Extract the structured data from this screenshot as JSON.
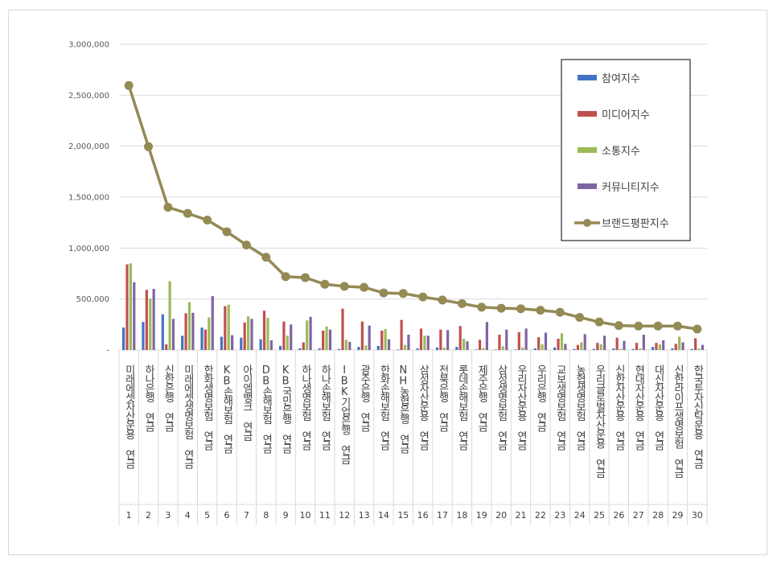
{
  "chart_data": {
    "type": "bar",
    "title": "",
    "xlabel": "",
    "ylabel": "",
    "ylim": [
      0,
      3000000
    ],
    "yticks": [
      0,
      500000,
      1000000,
      1500000,
      2000000,
      2500000,
      3000000
    ],
    "ytick_labels": [
      "-",
      "500,000",
      "1,000,000",
      "1,500,000",
      "2,000,000",
      "2,500,000",
      "3,000,000"
    ],
    "grid": true,
    "legend_position": "top-right",
    "categories": [
      "미래에셋자산운용 연금",
      "하나은행 연금",
      "신한은행 연금",
      "미래에셋생명보험 연금",
      "한화생명보험 연금",
      "KB손해보험 연금",
      "아이엠뱅크 연금",
      "DB손해보험 연금",
      "KB국민은행 연금",
      "하나생명보험 연금",
      "하나손해보험 연금",
      "IBK기업은행 연금",
      "광주은행 연금",
      "한화손해보험 연금",
      "NH농협은행 연금",
      "삼성자산운용 연금",
      "전북은행 연금",
      "롯데손해보험 연금",
      "제주은행 연금",
      "삼성생명보험 연금",
      "우리자산운용 연금",
      "우리은행 연금",
      "교보생명보험 연금",
      "농협생명보험 연금",
      "우리글로벌자산운용 연금",
      "신한자산운용 연금",
      "현대자산운용 연금",
      "대신자산운용 연금",
      "신한라이프생명보험 연금",
      "한국투자신탁운용 연금"
    ],
    "category_numbers": [
      "1",
      "2",
      "3",
      "4",
      "5",
      "6",
      "7",
      "8",
      "9",
      "10",
      "11",
      "12",
      "13",
      "14",
      "15",
      "16",
      "17",
      "18",
      "19",
      "20",
      "21",
      "22",
      "23",
      "24",
      "25",
      "26",
      "27",
      "28",
      "29",
      "30"
    ],
    "series": [
      {
        "name": "참여지수",
        "type": "bar",
        "color": "#4472c4",
        "values": [
          220000,
          275000,
          350000,
          140000,
          220000,
          130000,
          120000,
          105000,
          40000,
          15000,
          15000,
          10000,
          30000,
          40000,
          5000,
          15000,
          25000,
          30000,
          5000,
          5000,
          5000,
          15000,
          25000,
          10000,
          10000,
          15000,
          10000,
          30000,
          15000,
          10000
        ]
      },
      {
        "name": "미디어지수",
        "type": "bar",
        "color": "#c0504d",
        "values": [
          840000,
          590000,
          55000,
          360000,
          200000,
          430000,
          270000,
          385000,
          280000,
          75000,
          190000,
          405000,
          280000,
          190000,
          295000,
          210000,
          200000,
          235000,
          100000,
          150000,
          175000,
          125000,
          110000,
          50000,
          70000,
          120000,
          70000,
          70000,
          60000,
          115000
        ]
      },
      {
        "name": "소통지수",
        "type": "bar",
        "color": "#9bbb59",
        "values": [
          850000,
          505000,
          675000,
          470000,
          320000,
          445000,
          330000,
          315000,
          140000,
          290000,
          230000,
          100000,
          45000,
          205000,
          50000,
          140000,
          25000,
          110000,
          20000,
          35000,
          25000,
          55000,
          165000,
          75000,
          55000,
          10000,
          15000,
          55000,
          130000,
          15000
        ]
      },
      {
        "name": "커뮤니티지수",
        "type": "bar",
        "color": "#8064a2",
        "values": [
          665000,
          600000,
          305000,
          365000,
          530000,
          145000,
          305000,
          95000,
          250000,
          325000,
          200000,
          80000,
          240000,
          105000,
          150000,
          140000,
          195000,
          85000,
          275000,
          200000,
          210000,
          170000,
          60000,
          155000,
          140000,
          90000,
          150000,
          95000,
          75000,
          50000
        ]
      },
      {
        "name": "브랜드평판지수",
        "type": "line",
        "color": "#948a54",
        "values": [
          2595000,
          1995000,
          1400000,
          1340000,
          1275000,
          1160000,
          1030000,
          910000,
          720000,
          710000,
          645000,
          625000,
          615000,
          560000,
          555000,
          520000,
          490000,
          455000,
          420000,
          410000,
          405000,
          390000,
          370000,
          320000,
          275000,
          240000,
          235000,
          235000,
          235000,
          205000
        ]
      }
    ]
  }
}
